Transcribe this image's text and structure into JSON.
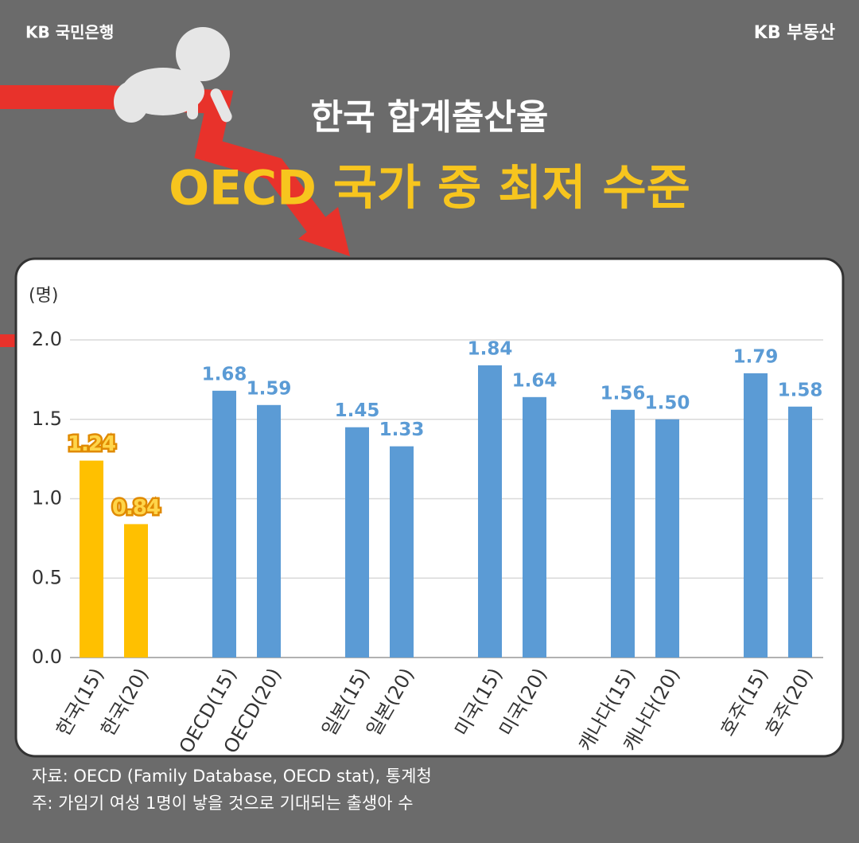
{
  "header": {
    "logo": "KB 국민은행",
    "brand": "KB 부동산"
  },
  "title": "한국 합계출산율",
  "subtitle": "OECD 국가 중 최저 수준",
  "chart_data": {
    "type": "bar",
    "y_unit": "(명)",
    "categories": [
      "한국(15)",
      "한국(20)",
      "OECD(15)",
      "OECD(20)",
      "일본(15)",
      "일본(20)",
      "미국(15)",
      "미국(20)",
      "캐나다(15)",
      "캐나다(20)",
      "호주(15)",
      "호주(20)"
    ],
    "values": [
      1.24,
      0.84,
      1.68,
      1.59,
      1.45,
      1.33,
      1.84,
      1.64,
      1.56,
      1.5,
      1.79,
      1.58
    ],
    "value_labels": [
      "1.24",
      "0.84",
      "1.68",
      "1.59",
      "1.45",
      "1.33",
      "1.84",
      "1.64",
      "1.56",
      "1.50",
      "1.79",
      "1.58"
    ],
    "colors": [
      "#ffc000",
      "#ffc000",
      "#5b9bd5",
      "#5b9bd5",
      "#5b9bd5",
      "#5b9bd5",
      "#5b9bd5",
      "#5b9bd5",
      "#5b9bd5",
      "#5b9bd5",
      "#5b9bd5",
      "#5b9bd5"
    ],
    "ylim": [
      0,
      2
    ],
    "yticks": [
      {
        "value": 0,
        "label": "0.0"
      },
      0.5,
      {
        "value": 1,
        "label": "1.0"
      },
      1.5,
      {
        "value": 2,
        "label": "2.0"
      }
    ],
    "grid": true
  },
  "notes": [
    "자료: OECD (Family Database, OECD stat), 통계청",
    "주: 가임기 여성 1명이 낳을 것으로 기대되는 출생아 수"
  ]
}
